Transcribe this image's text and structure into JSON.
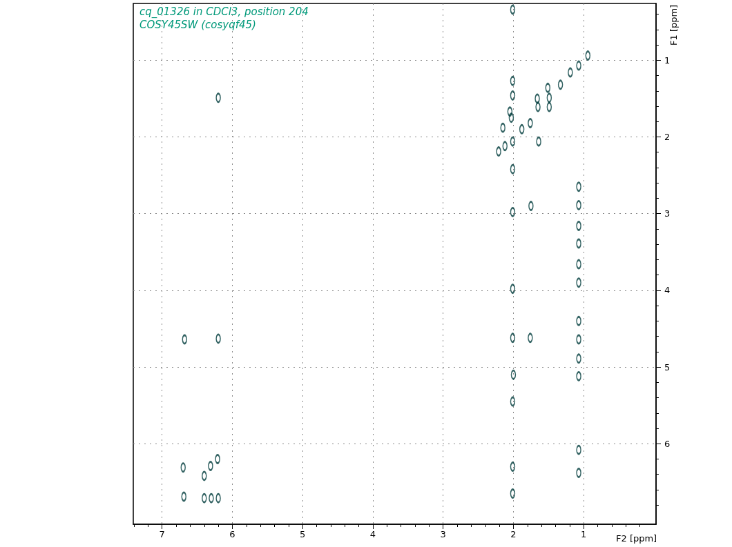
{
  "chart_data": {
    "type": "scatter",
    "title": "cq_01326 in CDCl3, position 204",
    "subtitle": "COSY45SW (cosyqf45)",
    "xlabel": "F2 [ppm]",
    "ylabel": "F1 [ppm]",
    "xlim": [
      7.41,
      -0.03
    ],
    "xticks": [
      7,
      6,
      5,
      4,
      3,
      2,
      1
    ],
    "ylim": [
      7.05,
      0.26
    ],
    "yticks": [
      1,
      2,
      3,
      4,
      5,
      6
    ],
    "grid": true,
    "marker": "circle",
    "series": [
      {
        "color": "#003c3c",
        "x": [
          2.01,
          1.07,
          0.94,
          1.19,
          1.33,
          2.01,
          2.01,
          1.51,
          1.49,
          1.49,
          1.66,
          1.65,
          1.76,
          2.05,
          2.03,
          2.01,
          2.15,
          1.88,
          1.64,
          2.21,
          2.12,
          2.01,
          6.2,
          2.01,
          1.75,
          1.07,
          1.07,
          1.07,
          1.07,
          1.07,
          1.07,
          1.07,
          1.07,
          1.07,
          1.07,
          2.01,
          2.01,
          1.76,
          6.68,
          6.2,
          2.0,
          2.01,
          2.01,
          2.01,
          1.07,
          1.07,
          6.7,
          6.69,
          6.4,
          6.31,
          6.21,
          6.4,
          6.3,
          6.2
        ],
        "values": [
          0.34,
          1.07,
          0.94,
          1.16,
          1.32,
          1.27,
          1.46,
          1.36,
          1.49,
          1.61,
          1.5,
          1.61,
          1.82,
          1.67,
          1.75,
          2.06,
          1.88,
          1.9,
          2.06,
          2.19,
          2.12,
          2.42,
          1.49,
          2.98,
          2.9,
          2.65,
          2.89,
          3.16,
          3.39,
          3.66,
          3.9,
          4.4,
          4.64,
          4.89,
          5.12,
          3.98,
          4.62,
          4.62,
          4.64,
          4.63,
          5.1,
          5.45,
          6.3,
          6.65,
          6.08,
          6.38,
          6.31,
          6.69,
          6.42,
          6.29,
          6.2,
          6.71,
          6.71,
          6.71
        ]
      }
    ]
  }
}
